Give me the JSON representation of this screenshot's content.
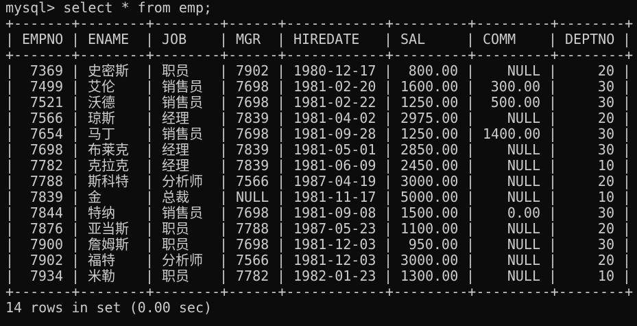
{
  "prompt": "mysql> select * from emp;",
  "columns": [
    {
      "name": "EMPNO",
      "align": "right"
    },
    {
      "name": "ENAME",
      "align": "left"
    },
    {
      "name": "JOB",
      "align": "left"
    },
    {
      "name": "MGR",
      "align": "right"
    },
    {
      "name": "HIREDATE",
      "align": "left"
    },
    {
      "name": "SAL",
      "align": "right"
    },
    {
      "name": "COMM",
      "align": "right"
    },
    {
      "name": "DEPTNO",
      "align": "right"
    }
  ],
  "rows": [
    [
      "7369",
      "史密斯",
      "职员",
      "7902",
      "1980-12-17",
      "800.00",
      "NULL",
      "20"
    ],
    [
      "7499",
      "艾伦",
      "销售员",
      "7698",
      "1981-02-20",
      "1600.00",
      "300.00",
      "30"
    ],
    [
      "7521",
      "沃德",
      "销售员",
      "7698",
      "1981-02-22",
      "1250.00",
      "500.00",
      "30"
    ],
    [
      "7566",
      "琼斯",
      "经理",
      "7839",
      "1981-04-02",
      "2975.00",
      "NULL",
      "20"
    ],
    [
      "7654",
      "马丁",
      "销售员",
      "7698",
      "1981-09-28",
      "1250.00",
      "1400.00",
      "30"
    ],
    [
      "7698",
      "布莱克",
      "经理",
      "7839",
      "1981-05-01",
      "2850.00",
      "NULL",
      "30"
    ],
    [
      "7782",
      "克拉克",
      "经理",
      "7839",
      "1981-06-09",
      "2450.00",
      "NULL",
      "10"
    ],
    [
      "7788",
      "斯科特",
      "分析师",
      "7566",
      "1987-04-19",
      "3000.00",
      "NULL",
      "20"
    ],
    [
      "7839",
      "金",
      "总裁",
      "NULL",
      "1981-11-17",
      "5000.00",
      "NULL",
      "10"
    ],
    [
      "7844",
      "特纳",
      "销售员",
      "7698",
      "1981-09-08",
      "1500.00",
      "0.00",
      "30"
    ],
    [
      "7876",
      "亚当斯",
      "职员",
      "7788",
      "1987-05-23",
      "1100.00",
      "NULL",
      "20"
    ],
    [
      "7900",
      "詹姆斯",
      "职员",
      "7698",
      "1981-12-03",
      "950.00",
      "NULL",
      "30"
    ],
    [
      "7902",
      "福特",
      "分析师",
      "7566",
      "1981-12-03",
      "3000.00",
      "NULL",
      "20"
    ],
    [
      "7934",
      "米勒",
      "职员",
      "7782",
      "1982-01-23",
      "1300.00",
      "NULL",
      "10"
    ]
  ],
  "footer": "14 rows in set (0.00 sec)",
  "colors": {
    "background": "#0c0c0c",
    "text": "#cccccc"
  }
}
